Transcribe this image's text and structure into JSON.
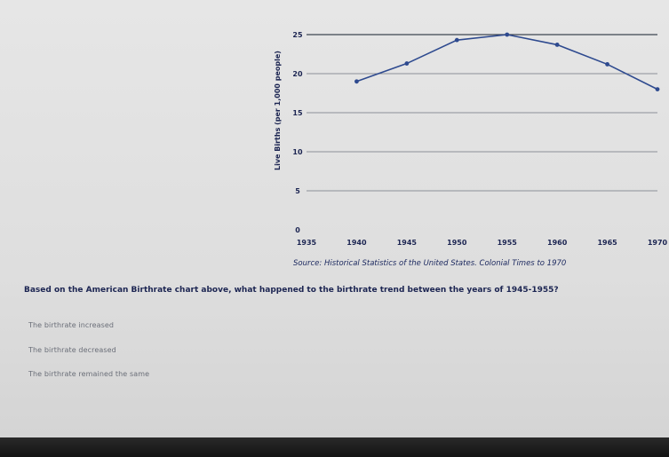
{
  "chart_data": {
    "type": "line",
    "title": "",
    "xlabel": "",
    "ylabel": "Live Births (per 1,000 people)",
    "x": [
      1940,
      1945,
      1950,
      1955,
      1960,
      1965,
      1970
    ],
    "series": [
      {
        "values": [
          19,
          21.3,
          24.3,
          25,
          23.7,
          21.2,
          18
        ]
      }
    ],
    "x_ticks": [
      "1935",
      "1940",
      "1945",
      "1950",
      "1955",
      "1960",
      "1965",
      "1970"
    ],
    "y_ticks": [
      "0",
      "5",
      "10",
      "15",
      "20",
      "25"
    ],
    "xlim": [
      1935,
      1970
    ],
    "ylim": [
      0,
      25
    ],
    "grid": true,
    "line_color": "#2e4a8f"
  },
  "source_text": "Source: Historical Statistics of the United States. Colonial Times to 1970",
  "question": "Based on the American Birthrate chart above, what happened to the birthrate trend between the years of 1945-1955?",
  "options": [
    "The birthrate increased",
    "The birthrate decreased",
    "The birthrate remained the same"
  ]
}
